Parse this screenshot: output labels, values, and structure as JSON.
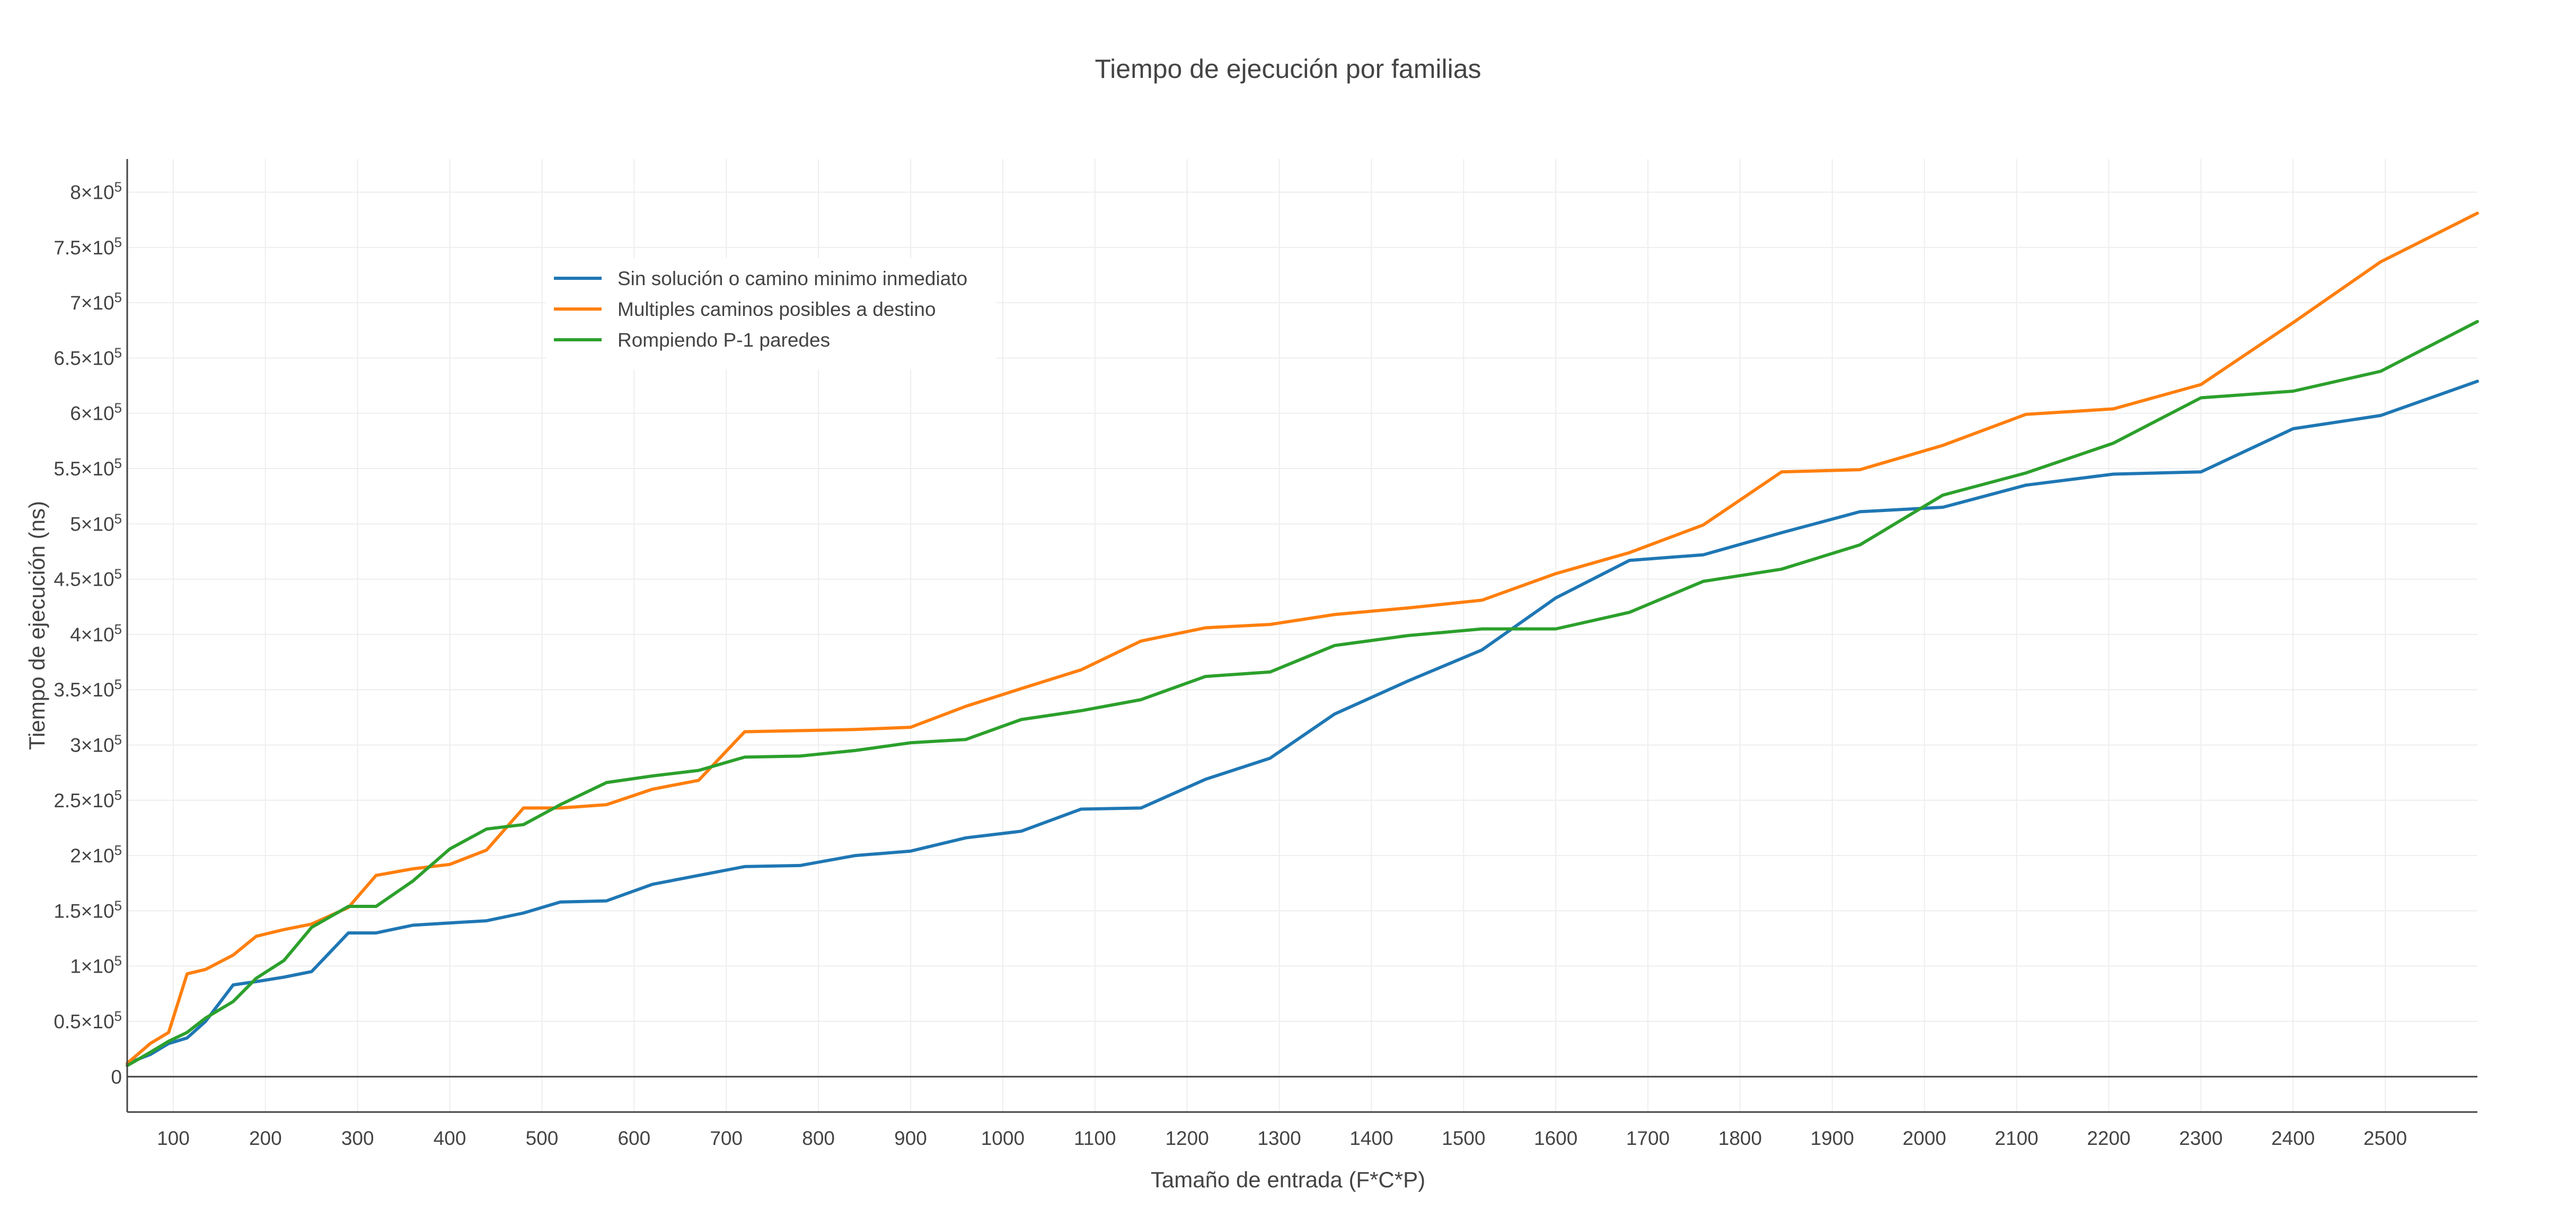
{
  "chart_data": {
    "type": "line",
    "title": "Tiempo de ejecución por familias",
    "xlabel": "Tamaño de entrada (F*C*P)",
    "ylabel": "Tiempo de ejecución (ns)",
    "xlim": [
      50,
      2600
    ],
    "ylim": [
      -32000,
      830000
    ],
    "x_ticks": [
      100,
      200,
      300,
      400,
      500,
      600,
      700,
      800,
      900,
      1000,
      1100,
      1200,
      1300,
      1400,
      1500,
      1600,
      1700,
      1800,
      1900,
      2000,
      2100,
      2200,
      2300,
      2400,
      2500
    ],
    "x_tick_labels": [
      "100",
      "200",
      "300",
      "400",
      "500",
      "600",
      "700",
      "800",
      "900",
      "1000",
      "1100",
      "1200",
      "1300",
      "1400",
      "1500",
      "1600",
      "1700",
      "1800",
      "1900",
      "2000",
      "2100",
      "2200",
      "2300",
      "2400",
      "2500"
    ],
    "y_ticks": [
      0,
      50000,
      100000,
      150000,
      200000,
      250000,
      300000,
      350000,
      400000,
      450000,
      500000,
      550000,
      600000,
      650000,
      700000,
      750000,
      800000
    ],
    "y_tick_bases": [
      "0",
      "0.5×10",
      "1×10",
      "1.5×10",
      "2×10",
      "2.5×10",
      "3×10",
      "3.5×10",
      "4×10",
      "4.5×10",
      "5×10",
      "5.5×10",
      "6×10",
      "6.5×10",
      "7×10",
      "7.5×10",
      "8×10"
    ],
    "y_tick_exp": "5",
    "grid": true,
    "legend_position": "top-left",
    "series": [
      {
        "name": "Sin solución o camino minimo inmediato",
        "color": "#1f77b4",
        "x": [
          50,
          75,
          95,
          115,
          135,
          165,
          190,
          220,
          250,
          290,
          320,
          360,
          400,
          440,
          480,
          520,
          570,
          620,
          670,
          720,
          780,
          840,
          900,
          960,
          1020,
          1085,
          1150,
          1220,
          1290,
          1360,
          1440,
          1520,
          1600,
          1680,
          1760,
          1845,
          1930,
          2020,
          2110,
          2205,
          2300,
          2400,
          2495,
          2600
        ],
        "y": [
          12000,
          20000,
          30000,
          35000,
          50000,
          83000,
          86000,
          90000,
          95000,
          130000,
          130000,
          137000,
          139000,
          141000,
          148000,
          158000,
          159000,
          174000,
          182000,
          190000,
          191000,
          200000,
          204000,
          216000,
          222000,
          242000,
          243000,
          269000,
          288000,
          328000,
          358000,
          386000,
          433000,
          467000,
          472000,
          492000,
          511000,
          515000,
          535000,
          545000,
          547000,
          586000,
          598000,
          629000
        ]
      },
      {
        "name": "Multiples caminos posibles a destino",
        "color": "#ff7f0e",
        "x": [
          50,
          75,
          95,
          115,
          135,
          165,
          190,
          220,
          250,
          290,
          320,
          360,
          400,
          440,
          480,
          520,
          570,
          620,
          670,
          720,
          780,
          840,
          900,
          960,
          1020,
          1085,
          1150,
          1220,
          1290,
          1360,
          1440,
          1520,
          1600,
          1680,
          1760,
          1845,
          1930,
          2020,
          2110,
          2205,
          2300,
          2400,
          2495,
          2600
        ],
        "y": [
          12000,
          30000,
          40000,
          93000,
          97000,
          110000,
          127000,
          133000,
          138000,
          153000,
          182000,
          188000,
          192000,
          205000,
          243000,
          243000,
          246000,
          260000,
          268000,
          312000,
          313000,
          314000,
          316000,
          335000,
          351000,
          368000,
          394000,
          406000,
          409000,
          418000,
          424000,
          431000,
          455000,
          474000,
          499000,
          547000,
          549000,
          571000,
          599000,
          604000,
          626000,
          682000,
          737000,
          781000
        ]
      },
      {
        "name": "Rompiendo P-1 paredes",
        "color": "#2ca02c",
        "x": [
          50,
          75,
          95,
          115,
          135,
          165,
          190,
          220,
          250,
          290,
          320,
          360,
          400,
          440,
          480,
          520,
          570,
          620,
          670,
          720,
          780,
          840,
          900,
          960,
          1020,
          1085,
          1150,
          1220,
          1290,
          1360,
          1440,
          1520,
          1600,
          1680,
          1760,
          1845,
          1930,
          2020,
          2110,
          2205,
          2300,
          2400,
          2495,
          2600
        ],
        "y": [
          10000,
          22000,
          32000,
          40000,
          53000,
          68000,
          89000,
          105000,
          135000,
          154000,
          154000,
          177000,
          206000,
          224000,
          228000,
          246000,
          266000,
          272000,
          277000,
          289000,
          290000,
          295000,
          302000,
          305000,
          323000,
          331000,
          341000,
          362000,
          366000,
          390000,
          399000,
          405000,
          405000,
          420000,
          448000,
          459000,
          481000,
          526000,
          546000,
          573000,
          614000,
          620000,
          638000,
          683000
        ]
      }
    ]
  }
}
